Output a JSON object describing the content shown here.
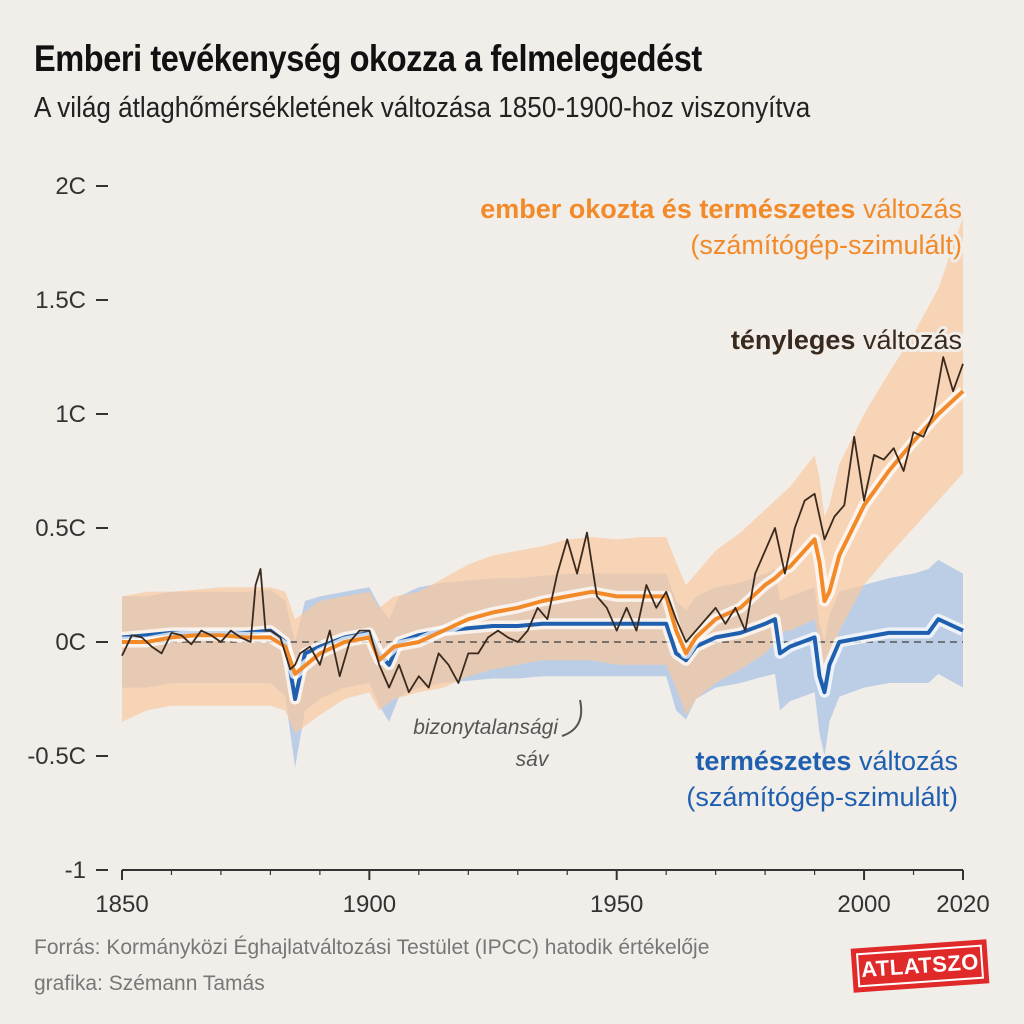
{
  "title": "Emberi tevékenység okozza a felmelegedést",
  "subtitle": "A világ átlaghőmérsékletének változása 1850-1900-hoz viszonyítva",
  "source": "Forrás: Kormányközi Éghajlatváltozási Testület (IPCC) hatodik értékelője",
  "credit": "grafika: Szémann Tamás",
  "logo_text": "ATLATSZO",
  "colors": {
    "background": "#f1ede9",
    "orange": "#f38a2a",
    "orange_band": "#f9c9a0",
    "blue": "#1f5fb0",
    "blue_band": "#a9c3e3",
    "observed": "#3a2a1e",
    "logo_red": "#e02a2a"
  },
  "annotations": {
    "uncertainty_1": "bizonytalansági",
    "uncertainty_2": "sáv",
    "human_bold": "ember okozta és természetes",
    "human_rest": " változás",
    "human_sub": "(számítógép-szimulált)",
    "observed_bold": "tényleges",
    "observed_rest": " változás",
    "natural_bold": "természetes",
    "natural_rest": " változás",
    "natural_sub": "(számítógép-szimulált)"
  },
  "chart_data": {
    "type": "line",
    "title": "Emberi tevékenység okozza a felmelegedést",
    "xlabel": "",
    "ylabel": "",
    "xlim": [
      1850,
      2020
    ],
    "ylim": [
      -1,
      2
    ],
    "x_ticks": [
      1850,
      1900,
      1950,
      2000,
      2020
    ],
    "y_ticks": [
      {
        "value": 2,
        "label": "2C"
      },
      {
        "value": 1.5,
        "label": "1.5C"
      },
      {
        "value": 1,
        "label": "1C"
      },
      {
        "value": 0.5,
        "label": "0.5C"
      },
      {
        "value": 0,
        "label": "0C"
      },
      {
        "value": -0.5,
        "label": "-0.5C"
      },
      {
        "value": -1,
        "label": "-1"
      }
    ],
    "reference_line": 0,
    "series": [
      {
        "name": "ember okozta és természetes változás (számítógép-szimulált)",
        "x": [
          1850,
          1855,
          1860,
          1865,
          1870,
          1875,
          1880,
          1883,
          1885,
          1890,
          1895,
          1900,
          1902,
          1905,
          1910,
          1915,
          1920,
          1925,
          1930,
          1935,
          1940,
          1945,
          1950,
          1955,
          1960,
          1962,
          1964,
          1966,
          1970,
          1975,
          1980,
          1982,
          1984,
          1985,
          1990,
          1991,
          1992,
          1993,
          1995,
          2000,
          2005,
          2010,
          2015,
          2020
        ],
        "values": [
          0.0,
          0.0,
          0.02,
          0.03,
          0.03,
          0.02,
          0.02,
          -0.02,
          -0.14,
          -0.05,
          0.0,
          0.02,
          -0.08,
          -0.02,
          0.0,
          0.05,
          0.1,
          0.13,
          0.15,
          0.18,
          0.2,
          0.22,
          0.2,
          0.2,
          0.2,
          0.05,
          -0.05,
          0.02,
          0.1,
          0.15,
          0.25,
          0.28,
          0.32,
          0.33,
          0.45,
          0.35,
          0.18,
          0.22,
          0.38,
          0.6,
          0.75,
          0.88,
          1.0,
          1.1
        ],
        "band_low": [
          -0.35,
          -0.3,
          -0.28,
          -0.28,
          -0.28,
          -0.28,
          -0.28,
          -0.3,
          -0.4,
          -0.32,
          -0.25,
          -0.22,
          -0.3,
          -0.25,
          -0.22,
          -0.2,
          -0.15,
          -0.12,
          -0.1,
          -0.08,
          -0.08,
          -0.08,
          -0.1,
          -0.1,
          -0.1,
          -0.2,
          -0.32,
          -0.25,
          -0.18,
          -0.12,
          -0.05,
          0.0,
          0.05,
          0.05,
          0.1,
          0.0,
          -0.15,
          -0.1,
          0.05,
          0.25,
          0.38,
          0.5,
          0.62,
          0.74
        ],
        "band_high": [
          0.2,
          0.22,
          0.22,
          0.23,
          0.24,
          0.24,
          0.24,
          0.22,
          0.1,
          0.18,
          0.2,
          0.22,
          0.15,
          0.2,
          0.22,
          0.28,
          0.34,
          0.38,
          0.4,
          0.42,
          0.45,
          0.46,
          0.45,
          0.46,
          0.46,
          0.35,
          0.25,
          0.3,
          0.4,
          0.48,
          0.58,
          0.62,
          0.66,
          0.68,
          0.82,
          0.72,
          0.55,
          0.6,
          0.78,
          1.0,
          1.18,
          1.35,
          1.55,
          1.86
        ]
      },
      {
        "name": "tényleges változás",
        "x": [
          1850,
          1852,
          1854,
          1856,
          1858,
          1860,
          1862,
          1864,
          1866,
          1868,
          1870,
          1872,
          1874,
          1876,
          1877,
          1878,
          1879,
          1880,
          1882,
          1884,
          1885,
          1886,
          1888,
          1890,
          1892,
          1894,
          1896,
          1898,
          1900,
          1902,
          1904,
          1906,
          1908,
          1910,
          1912,
          1914,
          1916,
          1918,
          1920,
          1922,
          1924,
          1926,
          1928,
          1930,
          1932,
          1934,
          1936,
          1938,
          1940,
          1942,
          1944,
          1946,
          1948,
          1950,
          1952,
          1954,
          1956,
          1958,
          1960,
          1962,
          1964,
          1966,
          1968,
          1970,
          1972,
          1974,
          1976,
          1978,
          1980,
          1982,
          1984,
          1986,
          1988,
          1990,
          1992,
          1994,
          1996,
          1998,
          2000,
          2002,
          2004,
          2006,
          2008,
          2010,
          2012,
          2014,
          2016,
          2018,
          2020
        ],
        "values": [
          -0.06,
          0.03,
          0.02,
          -0.02,
          -0.05,
          0.04,
          0.03,
          -0.01,
          0.05,
          0.03,
          0.0,
          0.05,
          0.02,
          0.0,
          0.25,
          0.32,
          0.05,
          0.05,
          0.02,
          -0.12,
          -0.1,
          -0.05,
          -0.02,
          -0.1,
          0.05,
          -0.15,
          0.0,
          0.05,
          0.05,
          -0.1,
          -0.2,
          -0.1,
          -0.22,
          -0.15,
          -0.2,
          -0.05,
          -0.1,
          -0.18,
          -0.05,
          -0.05,
          0.02,
          0.05,
          0.02,
          0.0,
          0.05,
          0.15,
          0.1,
          0.3,
          0.45,
          0.3,
          0.48,
          0.2,
          0.15,
          0.05,
          0.15,
          0.05,
          0.25,
          0.15,
          0.22,
          0.1,
          0.0,
          0.05,
          0.1,
          0.15,
          0.08,
          0.15,
          0.05,
          0.3,
          0.4,
          0.5,
          0.3,
          0.5,
          0.62,
          0.65,
          0.45,
          0.55,
          0.6,
          0.9,
          0.62,
          0.82,
          0.8,
          0.85,
          0.75,
          0.92,
          0.9,
          1.0,
          1.25,
          1.1,
          1.22
        ]
      },
      {
        "name": "természetes változás (számítógép-szimulált)",
        "x": [
          1850,
          1855,
          1860,
          1865,
          1870,
          1875,
          1880,
          1883,
          1885,
          1887,
          1890,
          1895,
          1900,
          1902,
          1904,
          1906,
          1910,
          1915,
          1920,
          1925,
          1930,
          1935,
          1940,
          1945,
          1950,
          1955,
          1960,
          1962,
          1964,
          1966,
          1970,
          1975,
          1980,
          1982,
          1983,
          1985,
          1990,
          1991,
          1992,
          1993,
          1995,
          2000,
          2005,
          2010,
          2013,
          2015,
          2020
        ],
        "values": [
          0.02,
          0.03,
          0.04,
          0.04,
          0.04,
          0.04,
          0.05,
          0.0,
          -0.25,
          -0.05,
          -0.02,
          0.02,
          0.04,
          -0.05,
          -0.1,
          0.0,
          0.03,
          0.05,
          0.06,
          0.07,
          0.07,
          0.08,
          0.08,
          0.08,
          0.08,
          0.08,
          0.08,
          -0.05,
          -0.08,
          -0.02,
          0.02,
          0.04,
          0.08,
          0.1,
          -0.05,
          -0.02,
          0.02,
          -0.15,
          -0.22,
          -0.1,
          0.0,
          0.02,
          0.04,
          0.04,
          0.04,
          0.1,
          0.05
        ],
        "band_low": [
          -0.2,
          -0.2,
          -0.18,
          -0.18,
          -0.18,
          -0.18,
          -0.18,
          -0.24,
          -0.55,
          -0.3,
          -0.25,
          -0.2,
          -0.18,
          -0.28,
          -0.35,
          -0.24,
          -0.2,
          -0.18,
          -0.17,
          -0.16,
          -0.16,
          -0.15,
          -0.15,
          -0.15,
          -0.15,
          -0.15,
          -0.15,
          -0.3,
          -0.34,
          -0.25,
          -0.2,
          -0.18,
          -0.15,
          -0.14,
          -0.3,
          -0.26,
          -0.22,
          -0.4,
          -0.5,
          -0.35,
          -0.24,
          -0.2,
          -0.18,
          -0.18,
          -0.18,
          -0.14,
          -0.2
        ],
        "band_high": [
          0.2,
          0.2,
          0.22,
          0.22,
          0.22,
          0.22,
          0.23,
          0.18,
          0.0,
          0.18,
          0.2,
          0.22,
          0.24,
          0.16,
          0.1,
          0.2,
          0.24,
          0.26,
          0.27,
          0.28,
          0.28,
          0.29,
          0.3,
          0.3,
          0.3,
          0.3,
          0.3,
          0.18,
          0.14,
          0.2,
          0.24,
          0.26,
          0.3,
          0.32,
          0.18,
          0.2,
          0.24,
          0.08,
          0.0,
          0.12,
          0.22,
          0.25,
          0.28,
          0.3,
          0.32,
          0.36,
          0.3
        ]
      }
    ]
  }
}
